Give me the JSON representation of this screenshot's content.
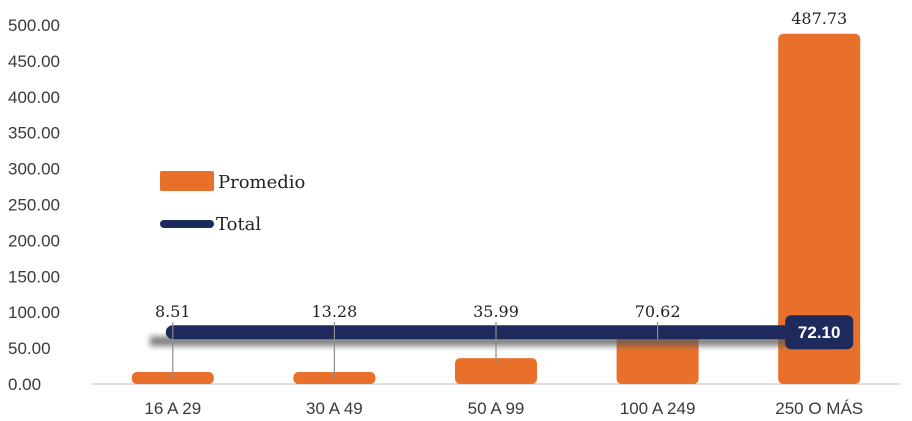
{
  "chart_data": {
    "type": "bar",
    "categories": [
      "16 A 29",
      "30 A 49",
      "50 A 99",
      "100 A 249",
      "250 O MÁS"
    ],
    "series": [
      {
        "name": "Promedio",
        "type": "bar",
        "values": [
          8.51,
          13.28,
          35.99,
          70.62,
          487.73
        ],
        "labels": [
          "8.51",
          "13.28",
          "35.99",
          "70.62",
          "487.73"
        ],
        "color": "#E8702A"
      },
      {
        "name": "Total",
        "type": "line",
        "values": [
          72.1,
          72.1,
          72.1,
          72.1,
          72.1
        ],
        "label": "72.10",
        "color": "#1F2A5C"
      }
    ],
    "yticks": [
      "0.00",
      "50.00",
      "100.00",
      "150.00",
      "200.00",
      "250.00",
      "300.00",
      "350.00",
      "400.00",
      "450.00",
      "500.00"
    ],
    "ylim": [
      0,
      500
    ],
    "grid": false,
    "legend_position": "left"
  }
}
